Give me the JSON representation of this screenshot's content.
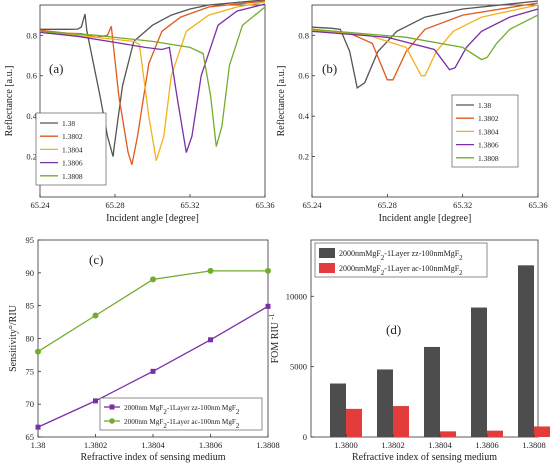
{
  "chart_data": [
    {
      "panel": "(a)",
      "type": "line",
      "xlabel": "Incident angle [degree]",
      "ylabel": "Reflectance [a.u.]",
      "xlim": [
        65.24,
        65.36
      ],
      "ylim": [
        0,
        0.95
      ],
      "xticks": [
        "65.24",
        "65.28",
        "65.32",
        "65.36"
      ],
      "yticks": [
        "0.2",
        "0.4",
        "0.6",
        "0.8"
      ],
      "legend_position": "bottom-left",
      "series": [
        {
          "name": "1.38",
          "color": "#555555",
          "points": [
            [
              65.24,
              0.83
            ],
            [
              65.255,
              0.83
            ],
            [
              65.26,
              0.831
            ],
            [
              65.262,
              0.84
            ],
            [
              65.264,
              0.905
            ],
            [
              65.265,
              0.82
            ],
            [
              65.272,
              0.5
            ],
            [
              65.276,
              0.3
            ],
            [
              65.27899,
              0.2
            ],
            [
              65.2795,
              0.245
            ],
            [
              65.284,
              0.55
            ],
            [
              65.29,
              0.77
            ],
            [
              65.3,
              0.85
            ],
            [
              65.31,
              0.9
            ],
            [
              65.32,
              0.93
            ],
            [
              65.33,
              0.95
            ],
            [
              65.36,
              0.975
            ]
          ]
        },
        {
          "name": "1.3802",
          "color": "#e05a1c",
          "points": [
            [
              65.24,
              0.825
            ],
            [
              65.255,
              0.81
            ],
            [
              65.262,
              0.808
            ],
            [
              65.27,
              0.79
            ],
            [
              65.276,
              0.8
            ],
            [
              65.278,
              0.845
            ],
            [
              65.282,
              0.5
            ],
            [
              65.287,
              0.22
            ],
            [
              65.289,
              0.16
            ],
            [
              65.292,
              0.3
            ],
            [
              65.298,
              0.66
            ],
            [
              65.305,
              0.82
            ],
            [
              65.315,
              0.89
            ],
            [
              65.33,
              0.94
            ],
            [
              65.36,
              0.97
            ]
          ]
        },
        {
          "name": "1.3804",
          "color": "#f3b11f",
          "points": [
            [
              65.24,
              0.82
            ],
            [
              65.26,
              0.8
            ],
            [
              65.28,
              0.78
            ],
            [
              65.29,
              0.77
            ],
            [
              65.293,
              0.755
            ],
            [
              65.298,
              0.4
            ],
            [
              65.302,
              0.18
            ],
            [
              65.306,
              0.3
            ],
            [
              65.31,
              0.6
            ],
            [
              65.318,
              0.82
            ],
            [
              65.33,
              0.9
            ],
            [
              65.345,
              0.94
            ],
            [
              65.36,
              0.965
            ]
          ]
        },
        {
          "name": "1.3806",
          "color": "#7b2fa6",
          "points": [
            [
              65.24,
              0.815
            ],
            [
              65.26,
              0.795
            ],
            [
              65.28,
              0.765
            ],
            [
              65.296,
              0.74
            ],
            [
              65.305,
              0.73
            ],
            [
              65.309,
              0.74
            ],
            [
              65.313,
              0.5
            ],
            [
              65.318,
              0.22
            ],
            [
              65.321,
              0.3
            ],
            [
              65.326,
              0.6
            ],
            [
              65.335,
              0.85
            ],
            [
              65.345,
              0.92
            ],
            [
              65.36,
              0.955
            ]
          ]
        },
        {
          "name": "1.3808",
          "color": "#73ac2d",
          "points": [
            [
              65.24,
              0.82
            ],
            [
              65.27,
              0.8
            ],
            [
              65.3,
              0.77
            ],
            [
              65.32,
              0.74
            ],
            [
              65.327,
              0.71
            ],
            [
              65.331,
              0.5
            ],
            [
              65.334,
              0.25
            ],
            [
              65.337,
              0.35
            ],
            [
              65.341,
              0.65
            ],
            [
              65.348,
              0.85
            ],
            [
              65.36,
              0.94
            ]
          ]
        }
      ]
    },
    {
      "panel": "(b)",
      "type": "line",
      "xlabel": "Incident angle [degree]",
      "ylabel": "Reflectance [a.u.]",
      "xlim": [
        65.24,
        65.36
      ],
      "ylim": [
        0,
        0.95
      ],
      "xticks": [
        "65.24",
        "65.28",
        "65.32",
        "65.36"
      ],
      "yticks": [
        "0.2",
        "0.4",
        "0.6",
        "0.8"
      ],
      "legend_position": "bottom-right",
      "series": [
        {
          "name": "1.38",
          "color": "#555555",
          "points": [
            [
              65.24,
              0.84
            ],
            [
              65.25,
              0.835
            ],
            [
              65.255,
              0.83
            ],
            [
              65.26,
              0.72
            ],
            [
              65.264,
              0.54
            ],
            [
              65.268,
              0.565
            ],
            [
              65.275,
              0.72
            ],
            [
              65.285,
              0.82
            ],
            [
              65.3,
              0.89
            ],
            [
              65.32,
              0.93
            ],
            [
              65.36,
              0.97
            ]
          ]
        },
        {
          "name": "1.3802",
          "color": "#e05a1c",
          "points": [
            [
              65.24,
              0.83
            ],
            [
              65.26,
              0.81
            ],
            [
              65.272,
              0.76
            ],
            [
              65.28,
              0.58
            ],
            [
              65.283,
              0.58
            ],
            [
              65.29,
              0.72
            ],
            [
              65.3,
              0.83
            ],
            [
              65.32,
              0.9
            ],
            [
              65.36,
              0.96
            ]
          ]
        },
        {
          "name": "1.3804",
          "color": "#f3b11f",
          "points": [
            [
              65.24,
              0.825
            ],
            [
              65.27,
              0.8
            ],
            [
              65.29,
              0.74
            ],
            [
              65.298,
              0.6
            ],
            [
              65.3,
              0.6
            ],
            [
              65.306,
              0.72
            ],
            [
              65.315,
              0.82
            ],
            [
              65.33,
              0.89
            ],
            [
              65.36,
              0.95
            ]
          ]
        },
        {
          "name": "1.3806",
          "color": "#7b2fa6",
          "points": [
            [
              65.24,
              0.82
            ],
            [
              65.28,
              0.79
            ],
            [
              65.305,
              0.73
            ],
            [
              65.313,
              0.63
            ],
            [
              65.316,
              0.64
            ],
            [
              65.322,
              0.74
            ],
            [
              65.33,
              0.82
            ],
            [
              65.345,
              0.89
            ],
            [
              65.36,
              0.93
            ]
          ]
        },
        {
          "name": "1.3808",
          "color": "#73ac2d",
          "points": [
            [
              65.24,
              0.83
            ],
            [
              65.29,
              0.79
            ],
            [
              65.32,
              0.74
            ],
            [
              65.33,
              0.68
            ],
            [
              65.333,
              0.69
            ],
            [
              65.338,
              0.76
            ],
            [
              65.345,
              0.83
            ],
            [
              65.36,
              0.9
            ]
          ]
        }
      ]
    },
    {
      "panel": "(c)",
      "type": "line",
      "xlabel": "Refractive index of sensing medium",
      "ylabel": "Sensitivity°/RIU",
      "x": [
        1.38,
        1.3802,
        1.3804,
        1.3806,
        1.3808
      ],
      "xticks": [
        "1.38",
        "1.3802",
        "1.3804",
        "1.3806",
        "1.3808"
      ],
      "ylim": [
        65,
        95
      ],
      "yticks": [
        "65",
        "70",
        "75",
        "80",
        "85",
        "90",
        "95"
      ],
      "legend_position": "bottom-right",
      "series": [
        {
          "name_parts": [
            "2000nm MgF",
            "2",
            "-1Layer zz-100nm MgF",
            "2"
          ],
          "color": "#7b2fa6",
          "marker": "square",
          "values": [
            66.5,
            70.5,
            75,
            79.8,
            84.9
          ]
        },
        {
          "name_parts": [
            "2000nm MgF",
            "2",
            "-1Layer ac-100nm MgF",
            "2"
          ],
          "color": "#73ac2d",
          "marker": "circle",
          "values": [
            78,
            83.5,
            89,
            90.3,
            90.3
          ]
        }
      ]
    },
    {
      "panel": "(d)",
      "type": "bar",
      "xlabel": "Refractive index of sensing medium",
      "ylabel": "FOM RIU",
      "ylabel_sup": "-1",
      "categories": [
        "1.3800",
        "1.3802",
        "1.3804",
        "1.3806",
        "1.3808"
      ],
      "ylim": [
        0,
        14000
      ],
      "yticks": [
        "0",
        "5000",
        "10000"
      ],
      "legend_position": "top-left",
      "series": [
        {
          "name_parts": [
            "2000nmMgF",
            "2",
            "-1Layer zz-100nmMgF",
            "2"
          ],
          "color": "#4d4d4d",
          "values": [
            3800,
            4800,
            6400,
            9200,
            12200
          ]
        },
        {
          "name_parts": [
            "2000nmMgF",
            "2",
            "-1Layer ac-100nmMgF",
            "2"
          ],
          "color": "#e23c3c",
          "values": [
            2000,
            2200,
            400,
            450,
            750
          ]
        }
      ]
    }
  ]
}
